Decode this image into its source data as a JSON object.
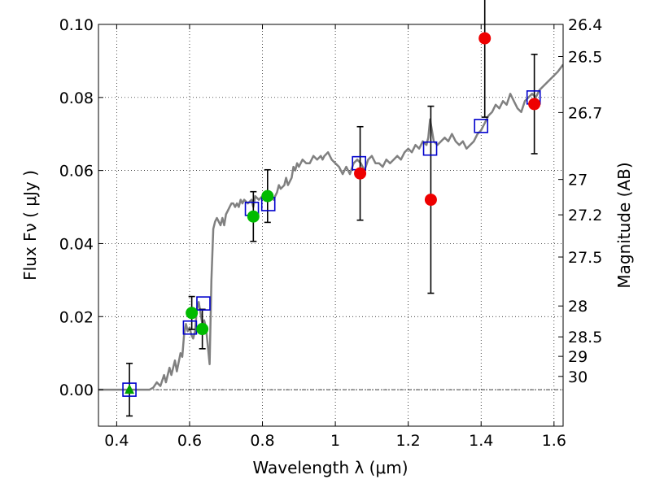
{
  "chart_data": {
    "type": "scatter",
    "title": "",
    "xlabel": "Wavelength  λ (μm)",
    "ylabel": "Flux  Fν  ( μJy )",
    "ylabel_right": "Magnitude (AB)",
    "xlim": [
      0.35,
      1.625
    ],
    "ylim": [
      -0.01,
      0.1
    ],
    "grid": true,
    "x_ticks": [
      0.4,
      0.6,
      0.8,
      1.0,
      1.2,
      1.4,
      1.6
    ],
    "x_tick_labels": [
      "0.4",
      "0.6",
      "0.8",
      "1",
      "1.2",
      "1.4",
      "1.6"
    ],
    "y_ticks": [
      0.0,
      0.02,
      0.04,
      0.06,
      0.08,
      0.1
    ],
    "y_tick_labels": [
      "0.00",
      "0.02",
      "0.04",
      "0.06",
      "0.08",
      "0.10"
    ],
    "right_ticks": [
      {
        "mag": 26.4,
        "label": "26.4"
      },
      {
        "mag": 26.5,
        "label": "26.5"
      },
      {
        "mag": 26.7,
        "label": "26.7"
      },
      {
        "mag": 27.0,
        "label": "27"
      },
      {
        "mag": 27.2,
        "label": "27.2"
      },
      {
        "mag": 27.5,
        "label": "27.5"
      },
      {
        "mag": 28.0,
        "label": "28"
      },
      {
        "mag": 28.5,
        "label": "28.5"
      },
      {
        "mag": 29.0,
        "label": "29"
      },
      {
        "mag": 30.0,
        "label": "30"
      }
    ],
    "series": [
      {
        "marker": "triangle",
        "color": "#00a000",
        "points": [
          {
            "x": 0.435,
            "y": 0.0,
            "err": 0.0072
          }
        ]
      },
      {
        "marker": "circle",
        "color": "#00bb00",
        "points": [
          {
            "x": 0.606,
            "y": 0.021,
            "err": 0.0045
          },
          {
            "x": 0.635,
            "y": 0.0166,
            "err": 0.0054
          },
          {
            "x": 0.775,
            "y": 0.0474,
            "err": 0.0068
          },
          {
            "x": 0.814,
            "y": 0.053,
            "err": 0.0072
          }
        ]
      },
      {
        "marker": "circle",
        "color": "#ee0000",
        "points": [
          {
            "x": 1.068,
            "y": 0.0592,
            "err": 0.0128
          },
          {
            "x": 1.262,
            "y": 0.052,
            "err": 0.0256
          },
          {
            "x": 1.41,
            "y": 0.0962,
            "err": 0.0216
          },
          {
            "x": 1.546,
            "y": 0.0782,
            "err": 0.0136
          }
        ]
      },
      {
        "marker": "square",
        "color": "#0000cc",
        "points": [
          {
            "x": 0.435,
            "y": 0.0
          },
          {
            "x": 0.601,
            "y": 0.017
          },
          {
            "x": 0.638,
            "y": 0.0236
          },
          {
            "x": 0.771,
            "y": 0.0495
          },
          {
            "x": 0.816,
            "y": 0.0508
          },
          {
            "x": 1.065,
            "y": 0.062
          },
          {
            "x": 1.26,
            "y": 0.066
          },
          {
            "x": 1.4,
            "y": 0.0722
          },
          {
            "x": 1.544,
            "y": 0.08
          }
        ]
      },
      {
        "marker": "line",
        "color": "#808080",
        "points": [
          [
            0.35,
            0.0
          ],
          [
            0.49,
            0.0
          ],
          [
            0.5,
            0.0005
          ],
          [
            0.51,
            0.002
          ],
          [
            0.52,
            0.001
          ],
          [
            0.53,
            0.004
          ],
          [
            0.535,
            0.002
          ],
          [
            0.545,
            0.006
          ],
          [
            0.55,
            0.004
          ],
          [
            0.56,
            0.008
          ],
          [
            0.565,
            0.005
          ],
          [
            0.575,
            0.01
          ],
          [
            0.58,
            0.009
          ],
          [
            0.585,
            0.015
          ],
          [
            0.59,
            0.018
          ],
          [
            0.595,
            0.016
          ],
          [
            0.6,
            0.017
          ],
          [
            0.605,
            0.015
          ],
          [
            0.61,
            0.014
          ],
          [
            0.615,
            0.016
          ],
          [
            0.62,
            0.022
          ],
          [
            0.625,
            0.024
          ],
          [
            0.63,
            0.021
          ],
          [
            0.635,
            0.018
          ],
          [
            0.64,
            0.019
          ],
          [
            0.645,
            0.017
          ],
          [
            0.65,
            0.012
          ],
          [
            0.655,
            0.007
          ],
          [
            0.66,
            0.03
          ],
          [
            0.665,
            0.044
          ],
          [
            0.67,
            0.046
          ],
          [
            0.675,
            0.047
          ],
          [
            0.68,
            0.046
          ],
          [
            0.685,
            0.045
          ],
          [
            0.69,
            0.047
          ],
          [
            0.695,
            0.045
          ],
          [
            0.7,
            0.048
          ],
          [
            0.705,
            0.049
          ],
          [
            0.71,
            0.05
          ],
          [
            0.715,
            0.051
          ],
          [
            0.72,
            0.051
          ],
          [
            0.725,
            0.05
          ],
          [
            0.73,
            0.051
          ],
          [
            0.735,
            0.05
          ],
          [
            0.74,
            0.052
          ],
          [
            0.745,
            0.051
          ],
          [
            0.75,
            0.052
          ],
          [
            0.76,
            0.051
          ],
          [
            0.77,
            0.052
          ],
          [
            0.775,
            0.05
          ],
          [
            0.78,
            0.053
          ],
          [
            0.79,
            0.052
          ],
          [
            0.8,
            0.053
          ],
          [
            0.81,
            0.052
          ],
          [
            0.82,
            0.054
          ],
          [
            0.83,
            0.052
          ],
          [
            0.84,
            0.054
          ],
          [
            0.845,
            0.056
          ],
          [
            0.85,
            0.055
          ],
          [
            0.86,
            0.056
          ],
          [
            0.865,
            0.058
          ],
          [
            0.87,
            0.056
          ],
          [
            0.88,
            0.058
          ],
          [
            0.885,
            0.061
          ],
          [
            0.89,
            0.06
          ],
          [
            0.895,
            0.062
          ],
          [
            0.9,
            0.061
          ],
          [
            0.91,
            0.063
          ],
          [
            0.92,
            0.062
          ],
          [
            0.93,
            0.062
          ],
          [
            0.94,
            0.064
          ],
          [
            0.95,
            0.063
          ],
          [
            0.96,
            0.064
          ],
          [
            0.965,
            0.063
          ],
          [
            0.97,
            0.064
          ],
          [
            0.98,
            0.065
          ],
          [
            0.99,
            0.063
          ],
          [
            1.0,
            0.062
          ],
          [
            1.01,
            0.061
          ],
          [
            1.02,
            0.059
          ],
          [
            1.03,
            0.061
          ],
          [
            1.04,
            0.059
          ],
          [
            1.05,
            0.062
          ],
          [
            1.06,
            0.063
          ],
          [
            1.07,
            0.062
          ],
          [
            1.08,
            0.06
          ],
          [
            1.09,
            0.063
          ],
          [
            1.1,
            0.064
          ],
          [
            1.11,
            0.062
          ],
          [
            1.12,
            0.062
          ],
          [
            1.13,
            0.061
          ],
          [
            1.14,
            0.063
          ],
          [
            1.15,
            0.062
          ],
          [
            1.16,
            0.063
          ],
          [
            1.17,
            0.064
          ],
          [
            1.18,
            0.063
          ],
          [
            1.19,
            0.065
          ],
          [
            1.2,
            0.066
          ],
          [
            1.21,
            0.065
          ],
          [
            1.22,
            0.067
          ],
          [
            1.23,
            0.066
          ],
          [
            1.24,
            0.068
          ],
          [
            1.25,
            0.067
          ],
          [
            1.255,
            0.069
          ],
          [
            1.26,
            0.074
          ],
          [
            1.265,
            0.071
          ],
          [
            1.27,
            0.068
          ],
          [
            1.28,
            0.067
          ],
          [
            1.29,
            0.068
          ],
          [
            1.3,
            0.069
          ],
          [
            1.31,
            0.068
          ],
          [
            1.32,
            0.07
          ],
          [
            1.33,
            0.068
          ],
          [
            1.34,
            0.067
          ],
          [
            1.35,
            0.068
          ],
          [
            1.36,
            0.066
          ],
          [
            1.37,
            0.067
          ],
          [
            1.38,
            0.068
          ],
          [
            1.39,
            0.07
          ],
          [
            1.4,
            0.071
          ],
          [
            1.41,
            0.073
          ],
          [
            1.42,
            0.075
          ],
          [
            1.43,
            0.076
          ],
          [
            1.44,
            0.078
          ],
          [
            1.45,
            0.077
          ],
          [
            1.46,
            0.079
          ],
          [
            1.47,
            0.078
          ],
          [
            1.48,
            0.081
          ],
          [
            1.49,
            0.079
          ],
          [
            1.5,
            0.077
          ],
          [
            1.51,
            0.076
          ],
          [
            1.52,
            0.079
          ],
          [
            1.53,
            0.08
          ],
          [
            1.54,
            0.081
          ],
          [
            1.55,
            0.08
          ],
          [
            1.56,
            0.082
          ],
          [
            1.57,
            0.083
          ],
          [
            1.58,
            0.084
          ],
          [
            1.59,
            0.085
          ],
          [
            1.6,
            0.086
          ],
          [
            1.61,
            0.087
          ],
          [
            1.625,
            0.089
          ]
        ]
      }
    ]
  }
}
